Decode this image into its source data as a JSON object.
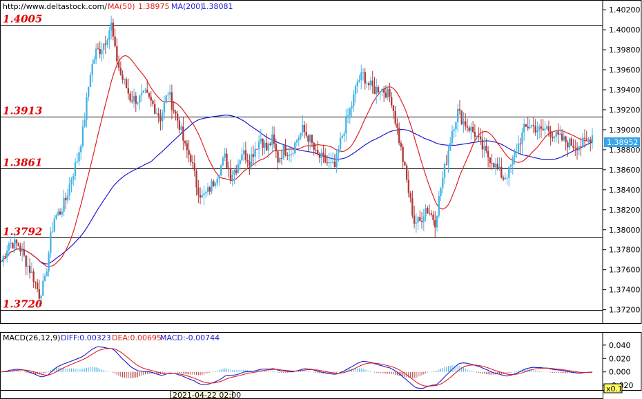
{
  "header": {
    "website": "http://www.deltastock.com/",
    "ma50_label": "MA(50)",
    "ma50_value": "1.38975",
    "ma200_label": "MA(200)",
    "ma200_value": "1.38081"
  },
  "macd_header": {
    "name": "MACD(26,12,9)",
    "diff": "DIFF:0.00323",
    "dea": "DEA:0.00695",
    "macd": "MACD:-0.00744"
  },
  "price_tag": "1.38952",
  "timestamp": "2021-04-22 02:00",
  "zoom_label": "x0.1",
  "levels": [
    {
      "label": "1.4005",
      "value": 1.4005
    },
    {
      "label": "1.3913",
      "value": 1.3913
    },
    {
      "label": "1.3861",
      "value": 1.3861
    },
    {
      "label": "1.3792",
      "value": 1.3792
    },
    {
      "label": "1.3720",
      "value": 1.372
    }
  ],
  "colors": {
    "up": "#46b4e6",
    "down": "#b23a3a",
    "ma50": "#e02020",
    "ma200": "#1a1ad0",
    "level_text": "#e00000",
    "macd_pos": "#46b4e6",
    "macd_neg": "#b23a3a"
  },
  "chart_data": [
    {
      "type": "candlestick",
      "title": "",
      "y_ticks": [
        "1.40200",
        "1.40000",
        "1.39800",
        "1.39600",
        "1.39400",
        "1.39200",
        "1.39000",
        "1.38800",
        "1.38600",
        "1.38400",
        "1.38200",
        "1.38000",
        "1.37800",
        "1.37600",
        "1.37400",
        "1.37200"
      ],
      "ylim": [
        1.3708,
        1.4027
      ],
      "grid": false,
      "close_path": [
        [
          0,
          1.3768
        ],
        [
          4,
          1.3787
        ],
        [
          9,
          1.3785
        ],
        [
          13,
          1.3768
        ],
        [
          17,
          1.3752
        ],
        [
          20,
          1.3735
        ],
        [
          23,
          1.3748
        ],
        [
          26,
          1.3792
        ],
        [
          28,
          1.3812
        ],
        [
          31,
          1.3818
        ],
        [
          34,
          1.383
        ],
        [
          37,
          1.3852
        ],
        [
          40,
          1.387
        ],
        [
          43,
          1.3898
        ],
        [
          47,
          1.3958
        ],
        [
          50,
          1.3978
        ],
        [
          52,
          1.398
        ],
        [
          55,
          1.399
        ],
        [
          58,
          1.4005
        ],
        [
          60,
          1.3978
        ],
        [
          63,
          1.3955
        ],
        [
          66,
          1.3942
        ],
        [
          68,
          1.3932
        ],
        [
          72,
          1.393
        ],
        [
          76,
          1.3935
        ],
        [
          80,
          1.3925
        ],
        [
          84,
          1.3912
        ],
        [
          88,
          1.3938
        ],
        [
          91,
          1.392
        ],
        [
          94,
          1.3905
        ],
        [
          97,
          1.3882
        ],
        [
          100,
          1.3872
        ],
        [
          103,
          1.3845
        ],
        [
          106,
          1.3832
        ],
        [
          109,
          1.3838
        ],
        [
          112,
          1.3848
        ],
        [
          115,
          1.386
        ],
        [
          118,
          1.3872
        ],
        [
          121,
          1.3855
        ],
        [
          124,
          1.3862
        ],
        [
          127,
          1.3878
        ],
        [
          131,
          1.387
        ],
        [
          134,
          1.3882
        ],
        [
          137,
          1.3892
        ],
        [
          140,
          1.388
        ],
        [
          143,
          1.389
        ],
        [
          146,
          1.387
        ],
        [
          149,
          1.388
        ],
        [
          153,
          1.3878
        ],
        [
          156,
          1.389
        ],
        [
          159,
          1.39
        ],
        [
          163,
          1.389
        ],
        [
          166,
          1.3875
        ],
        [
          170,
          1.387
        ],
        [
          173,
          1.3865
        ],
        [
          176,
          1.3862
        ],
        [
          179,
          1.3888
        ],
        [
          182,
          1.3908
        ],
        [
          185,
          1.3925
        ],
        [
          188,
          1.3948
        ],
        [
          191,
          1.3955
        ],
        [
          194,
          1.3945
        ],
        [
          197,
          1.394
        ],
        [
          200,
          1.3942
        ],
        [
          203,
          1.3938
        ],
        [
          206,
          1.393
        ],
        [
          209,
          1.39
        ],
        [
          212,
          1.387
        ],
        [
          215,
          1.3838
        ],
        [
          218,
          1.3808
        ],
        [
          221,
          1.3808
        ],
        [
          224,
          1.3822
        ],
        [
          227,
          1.3815
        ],
        [
          229,
          1.3808
        ],
        [
          232,
          1.3842
        ],
        [
          235,
          1.387
        ],
        [
          238,
          1.39
        ],
        [
          241,
          1.3918
        ],
        [
          244,
          1.3908
        ],
        [
          247,
          1.3902
        ],
        [
          250,
          1.3896
        ],
        [
          253,
          1.3885
        ],
        [
          256,
          1.3875
        ],
        [
          259,
          1.387
        ],
        [
          262,
          1.386
        ],
        [
          265,
          1.3852
        ],
        [
          268,
          1.3858
        ],
        [
          272,
          1.388
        ],
        [
          276,
          1.39
        ],
        [
          279,
          1.3905
        ],
        [
          282,
          1.3902
        ],
        [
          285,
          1.3898
        ],
        [
          288,
          1.3902
        ],
        [
          291,
          1.3896
        ],
        [
          294,
          1.3892
        ],
        [
          298,
          1.3888
        ],
        [
          302,
          1.3885
        ],
        [
          306,
          1.3885
        ],
        [
          310,
          1.389
        ],
        [
          312,
          1.3895
        ]
      ]
    },
    {
      "type": "line",
      "title": "",
      "name_label": "MACD(26,12,9)",
      "y_ticks": [
        "0.040",
        "0.020",
        "0.000",
        "-0.020"
      ],
      "ylim": [
        -0.024,
        0.044
      ]
    }
  ]
}
